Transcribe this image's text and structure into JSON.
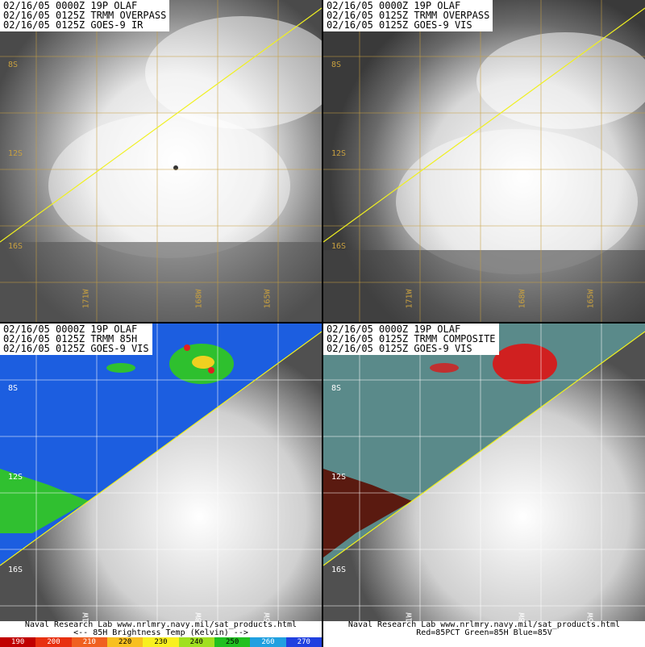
{
  "panels": {
    "ir": {
      "lines": [
        "02/16/05 0000Z 19P OLAF",
        "02/16/05 0125Z TRMM OVERPASS",
        "02/16/05 0125Z GOES-9 IR"
      ]
    },
    "vis": {
      "lines": [
        "02/16/05 0000Z 19P OLAF",
        "02/16/05 0125Z TRMM OVERPASS",
        "02/16/05 0125Z GOES-9 VIS"
      ]
    },
    "h85": {
      "lines": [
        "02/16/05 0000Z 19P OLAF",
        "02/16/05 0125Z TRMM 85H",
        "02/16/05 0125Z GOES-9 VIS"
      ]
    },
    "comp": {
      "lines": [
        "02/16/05 0000Z 19P OLAF",
        "02/16/05 0125Z TRMM COMPOSITE",
        "02/16/05 0125Z GOES-9 VIS"
      ]
    }
  },
  "grid_labels": {
    "lat": [
      "8S",
      "12S",
      "16S"
    ],
    "lon": [
      "171W",
      "168W",
      "165W"
    ]
  },
  "footer_left": {
    "line1": "Naval Research Lab  www.nrlmry.navy.mil/sat_products.html",
    "line2": "<--   85H Brightness Temp (Kelvin)   -->"
  },
  "footer_right": {
    "line1": "Naval Research Lab  www.nrlmry.navy.mil/sat_products.html",
    "line2": "Red=85PCT  Green=85H  Blue=85V"
  },
  "scale": [
    {
      "label": "190",
      "color": "#c00000"
    },
    {
      "label": "200",
      "color": "#e83010"
    },
    {
      "label": "210",
      "color": "#f06020"
    },
    {
      "label": "220",
      "color": "#f8c020"
    },
    {
      "label": "230",
      "color": "#f8f020"
    },
    {
      "label": "240",
      "color": "#a0e020"
    },
    {
      "label": "250",
      "color": "#20c020"
    },
    {
      "label": "260",
      "color": "#20a0e0"
    },
    {
      "label": "270",
      "color": "#2040e0"
    }
  ],
  "colors": {
    "grid": "#c8a040",
    "track": "#f0f020"
  }
}
